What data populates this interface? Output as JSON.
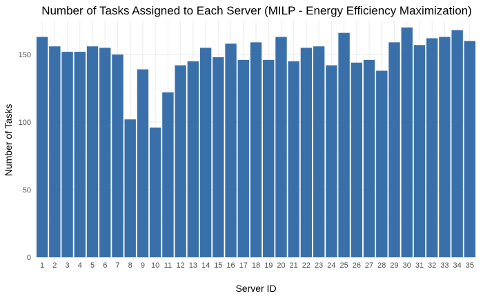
{
  "chart_data": {
    "type": "bar",
    "title": "Number of Tasks Assigned to Each Server (MILP - Energy Efficiency Maximization)",
    "xlabel": "Server ID",
    "ylabel": "Number of Tasks",
    "categories": [
      "1",
      "2",
      "3",
      "4",
      "5",
      "6",
      "7",
      "8",
      "9",
      "10",
      "11",
      "12",
      "13",
      "14",
      "15",
      "16",
      "17",
      "18",
      "19",
      "20",
      "21",
      "22",
      "23",
      "24",
      "25",
      "26",
      "27",
      "28",
      "29",
      "30",
      "31",
      "32",
      "33",
      "34",
      "35"
    ],
    "values": [
      163,
      156,
      152,
      152,
      156,
      155,
      150,
      102,
      139,
      96,
      122,
      142,
      145,
      155,
      148,
      158,
      146,
      159,
      146,
      163,
      145,
      155,
      156,
      142,
      166,
      144,
      146,
      138,
      159,
      170,
      157,
      162,
      163,
      168,
      160
    ],
    "ylim": [
      0,
      175
    ],
    "yticks": [
      0,
      50,
      100,
      150
    ],
    "bar_color": "#3a70aa",
    "grid": true,
    "legend": "none"
  }
}
